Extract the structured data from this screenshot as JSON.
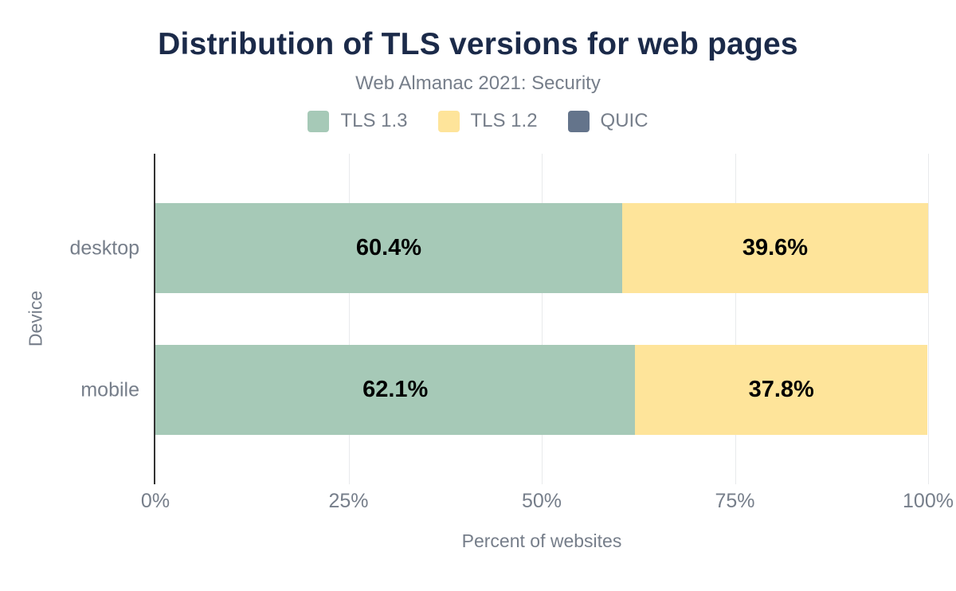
{
  "header": {
    "title": "Distribution of TLS versions for web pages",
    "subtitle": "Web Almanac 2021: Security"
  },
  "legend": [
    {
      "label": "TLS 1.3",
      "color": "#a6c9b7"
    },
    {
      "label": "TLS 1.2",
      "color": "#fee49a"
    },
    {
      "label": "QUIC",
      "color": "#64748b"
    }
  ],
  "chart_data": {
    "type": "bar",
    "orientation": "horizontal",
    "stacked": true,
    "title": "Distribution of TLS versions for web pages",
    "subtitle": "Web Almanac 2021: Security",
    "categories": [
      "desktop",
      "mobile"
    ],
    "series": [
      {
        "name": "TLS 1.3",
        "color": "#a6c9b7",
        "values": [
          60.4,
          62.1
        ],
        "labels": [
          "60.4%",
          "62.1%"
        ]
      },
      {
        "name": "TLS 1.2",
        "color": "#fee49a",
        "values": [
          39.6,
          37.8
        ],
        "labels": [
          "39.6%",
          "37.8%"
        ]
      },
      {
        "name": "QUIC",
        "color": "#64748b",
        "values": [
          0,
          0
        ],
        "labels": [
          "",
          ""
        ]
      }
    ],
    "xlabel": "Percent of websites",
    "ylabel": "Device",
    "x_ticks": [
      "0%",
      "25%",
      "50%",
      "75%",
      "100%"
    ],
    "x_tick_values": [
      0,
      25,
      50,
      75,
      100
    ],
    "xlim": [
      0,
      100
    ],
    "grid": true,
    "legend_position": "top"
  },
  "colors": {
    "title": "#1b2a49",
    "text_muted": "#767e8a",
    "grid": "#e8eaec",
    "axis": "#333333",
    "background": "#ffffff",
    "bar_label": "#000000"
  }
}
